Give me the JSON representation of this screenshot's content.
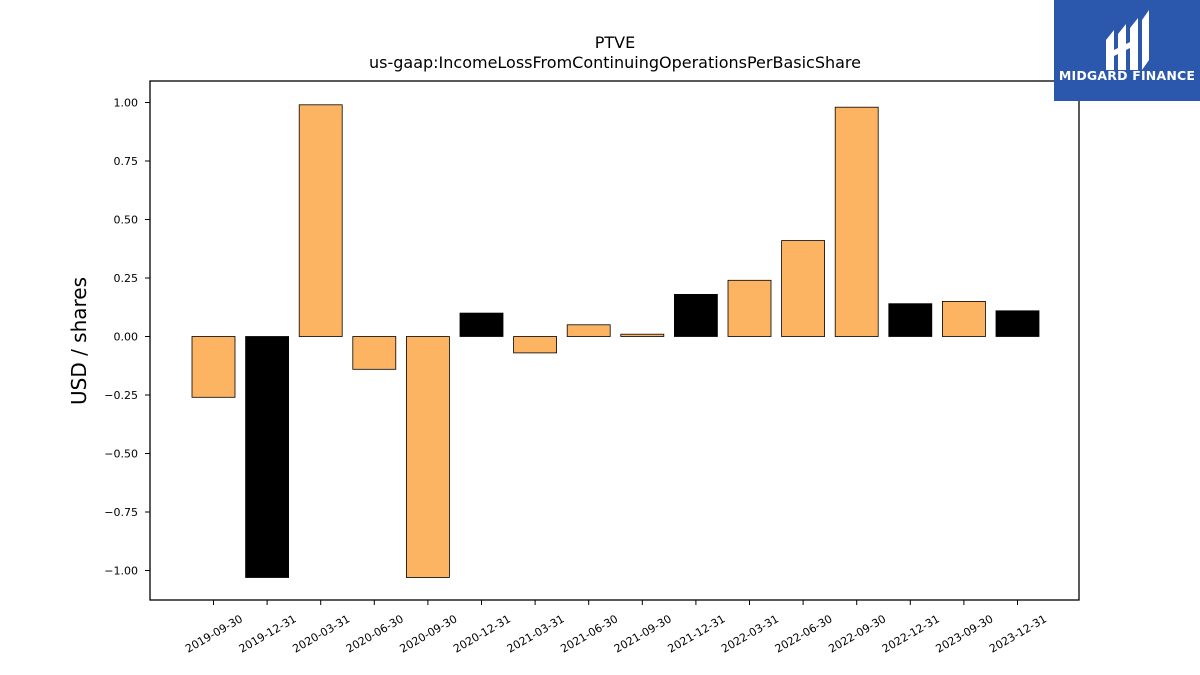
{
  "chart_data": {
    "type": "bar",
    "title": "PTVE",
    "subtitle": "us-gaap:IncomeLossFromContinuingOperationsPerBasicShare",
    "xlabel": "",
    "ylabel": "USD / shares",
    "ylim": [
      -1.13,
      1.09
    ],
    "yticks": [
      1.0,
      0.75,
      0.5,
      0.25,
      0.0,
      -0.25,
      -0.5,
      -0.75,
      -1.0
    ],
    "ytick_labels": [
      "1.00",
      "0.75",
      "0.50",
      "0.25",
      "0.00",
      "−0.25",
      "−0.50",
      "−0.75",
      "−1.00"
    ],
    "grid": false,
    "categories": [
      "2019-09-30",
      "2019-12-31",
      "2020-03-31",
      "2020-06-30",
      "2020-09-30",
      "2020-12-31",
      "2021-03-31",
      "2021-06-30",
      "2021-09-30",
      "2021-12-31",
      "2022-03-31",
      "2022-06-30",
      "2022-09-30",
      "2022-12-31",
      "2023-09-30",
      "2023-12-31"
    ],
    "values": [
      -0.26,
      -1.03,
      0.99,
      -0.14,
      -1.03,
      0.1,
      -0.07,
      0.05,
      0.01,
      0.18,
      0.24,
      0.41,
      0.98,
      0.14,
      0.15,
      0.11
    ],
    "bar_colors": [
      "#fdb462",
      "#000000",
      "#fdb462",
      "#fdb462",
      "#fdb462",
      "#000000",
      "#fdb462",
      "#fdb462",
      "#fdb462",
      "#000000",
      "#fdb462",
      "#fdb462",
      "#fdb462",
      "#000000",
      "#fdb462",
      "#000000"
    ]
  },
  "logo": {
    "text": "MIDGARD FINANCE",
    "background": "#2b57ad"
  }
}
